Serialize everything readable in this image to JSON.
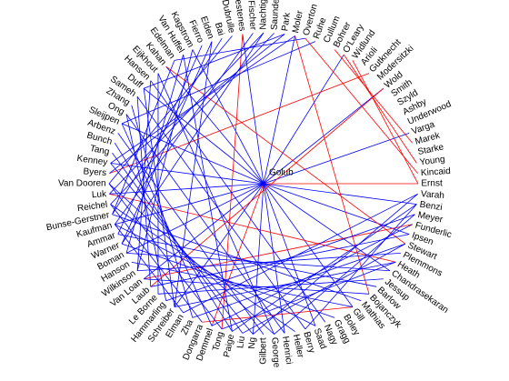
{
  "center": "Golub",
  "nodes": [
    "Ernst",
    "Kincaid",
    "Young",
    "Starke",
    "Marek",
    "Varga",
    "Underwood",
    "Ashby",
    "Szyld",
    "Smith",
    "Wold",
    "Modersitzki",
    "Gutknecht",
    "Arioli",
    "Widlund",
    "O'Leary",
    "Bohrer",
    "Cullum",
    "Ruhe",
    "Overton",
    "Moler",
    "Park",
    "Saunders",
    "Nachtigal",
    "Fischer",
    "Hestenes",
    "Dubrulle",
    "Bai",
    "Elden",
    "Fierro",
    "Kagstrom",
    "Van Huffel",
    "Edelman",
    "Kahan",
    "Eijkhout",
    "Hansen",
    "Duff",
    "Sameh",
    "Zhang",
    "Ong",
    "Sleijpen",
    "Arbenz",
    "Bunch",
    "Tang",
    "Kenney",
    "Byers",
    "Van Dooren",
    "Luk",
    "Reichel",
    "Bunse-Gerstner",
    "Kaufman",
    "Ammar",
    "Warner",
    "Boman",
    "Hanson",
    "Wilkinson",
    "Van Loan",
    "Laub",
    "Le Borne",
    "Hammarling",
    "Schreiber",
    "Elman",
    "Zha",
    "Dongarra",
    "Demmel",
    "Tong",
    "Paige",
    "Liu",
    "Ng",
    "Gilbert",
    "George",
    "Henrici",
    "Heller",
    "Berry",
    "Saad",
    "Nagy",
    "Gragg",
    "Boley",
    "Gill",
    "Mathias",
    "Bojanczyk",
    "Barlow",
    "Jessup",
    "Chandrasekaran",
    "Heath",
    "Plemmons",
    "Stewart",
    "Ipsen",
    "Funderlic",
    "Meyer",
    "Benzi",
    "Varah"
  ],
  "center_edges": [
    [
      0,
      "#ff0000"
    ],
    [
      5,
      "#0000ff"
    ],
    [
      10,
      "#0000ff"
    ],
    [
      15,
      "#0000ff"
    ],
    [
      20,
      "#0000ff"
    ],
    [
      25,
      "#0000ff"
    ],
    [
      30,
      "#0000ff"
    ],
    [
      33,
      "#0000ff"
    ],
    [
      36,
      "#0000ff"
    ],
    [
      40,
      "#0000ff"
    ],
    [
      44,
      "#0000ff"
    ],
    [
      47,
      "#0000ff"
    ],
    [
      50,
      "#0000ff"
    ],
    [
      53,
      "#0000ff"
    ],
    [
      56,
      "#0000ff"
    ],
    [
      60,
      "#0000ff"
    ],
    [
      64,
      "#ff0000"
    ],
    [
      68,
      "#0000ff"
    ],
    [
      71,
      "#0000ff"
    ],
    [
      74,
      "#0000ff"
    ],
    [
      78,
      "#0000ff"
    ],
    [
      83,
      "#0000ff"
    ],
    [
      87,
      "#0000ff"
    ],
    [
      90,
      "#0000ff"
    ]
  ],
  "edges": [
    [
      0,
      14,
      "#ff0000"
    ],
    [
      2,
      15,
      "#ff0000"
    ],
    [
      4,
      16,
      "#ff0000"
    ],
    [
      1,
      19,
      "#ff0000"
    ],
    [
      10,
      57,
      "#ff0000"
    ],
    [
      20,
      80,
      "#ff0000"
    ],
    [
      33,
      86,
      "#ff0000"
    ],
    [
      47,
      84,
      "#ff0000"
    ],
    [
      56,
      88,
      "#ff0000"
    ],
    [
      63,
      78,
      "#ff0000"
    ],
    [
      25,
      65,
      "#ff0000"
    ],
    [
      12,
      45,
      "#ff0000"
    ],
    [
      22,
      48,
      "#0000ff"
    ],
    [
      24,
      50,
      "#0000ff"
    ],
    [
      26,
      46,
      "#0000ff"
    ],
    [
      28,
      52,
      "#0000ff"
    ],
    [
      30,
      55,
      "#0000ff"
    ],
    [
      32,
      49,
      "#0000ff"
    ],
    [
      34,
      58,
      "#0000ff"
    ],
    [
      36,
      60,
      "#0000ff"
    ],
    [
      38,
      62,
      "#0000ff"
    ],
    [
      40,
      64,
      "#0000ff"
    ],
    [
      42,
      66,
      "#0000ff"
    ],
    [
      44,
      68,
      "#0000ff"
    ],
    [
      46,
      70,
      "#0000ff"
    ],
    [
      48,
      72,
      "#0000ff"
    ],
    [
      50,
      74,
      "#0000ff"
    ],
    [
      52,
      76,
      "#0000ff"
    ],
    [
      54,
      78,
      "#0000ff"
    ],
    [
      56,
      80,
      "#0000ff"
    ],
    [
      58,
      82,
      "#0000ff"
    ],
    [
      60,
      84,
      "#0000ff"
    ],
    [
      62,
      86,
      "#0000ff"
    ],
    [
      64,
      88,
      "#0000ff"
    ],
    [
      66,
      90,
      "#0000ff"
    ],
    [
      68,
      91,
      "#0000ff"
    ],
    [
      45,
      21,
      "#0000ff"
    ],
    [
      47,
      23,
      "#0000ff"
    ],
    [
      49,
      27,
      "#0000ff"
    ],
    [
      51,
      29,
      "#0000ff"
    ],
    [
      53,
      31,
      "#0000ff"
    ],
    [
      55,
      35,
      "#0000ff"
    ],
    [
      57,
      37,
      "#0000ff"
    ],
    [
      59,
      39,
      "#0000ff"
    ],
    [
      43,
      67,
      "#0000ff"
    ],
    [
      41,
      69,
      "#0000ff"
    ],
    [
      39,
      71,
      "#0000ff"
    ],
    [
      37,
      73,
      "#0000ff"
    ],
    [
      35,
      75,
      "#0000ff"
    ],
    [
      49,
      79,
      "#0000ff"
    ],
    [
      51,
      81,
      "#0000ff"
    ],
    [
      53,
      83,
      "#0000ff"
    ],
    [
      55,
      85,
      "#0000ff"
    ],
    [
      57,
      87,
      "#0000ff"
    ],
    [
      59,
      89,
      "#0000ff"
    ],
    [
      61,
      91,
      "#0000ff"
    ],
    [
      46,
      65,
      "#0000ff"
    ],
    [
      48,
      63,
      "#0000ff"
    ],
    [
      50,
      61,
      "#0000ff"
    ],
    [
      18,
      40,
      "#0000ff"
    ],
    [
      20,
      44,
      "#0000ff"
    ],
    [
      23,
      52,
      "#0000ff"
    ],
    [
      28,
      60,
      "#0000ff"
    ],
    [
      31,
      66,
      "#0000ff"
    ],
    [
      34,
      70,
      "#0000ff"
    ],
    [
      65,
      84,
      "#0000ff"
    ],
    [
      67,
      86,
      "#0000ff"
    ],
    [
      70,
      89,
      "#0000ff"
    ],
    [
      73,
      90,
      "#0000ff"
    ],
    [
      19,
      32,
      "#0000ff"
    ],
    [
      21,
      36,
      "#0000ff"
    ]
  ]
}
